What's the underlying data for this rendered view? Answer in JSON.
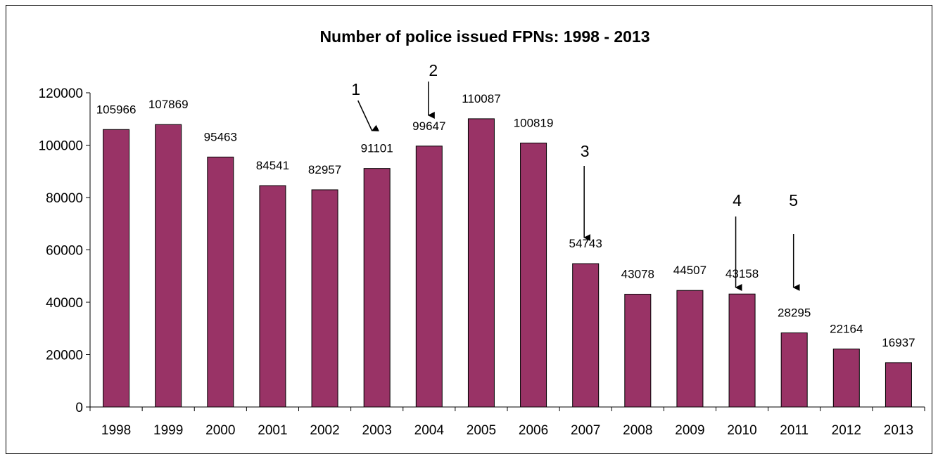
{
  "chart_data": {
    "type": "bar",
    "title": "Number of police issued FPNs: 1998 - 2013",
    "xlabel": "",
    "ylabel": "",
    "categories": [
      "1998",
      "1999",
      "2000",
      "2001",
      "2002",
      "2003",
      "2004",
      "2005",
      "2006",
      "2007",
      "2008",
      "2009",
      "2010",
      "2011",
      "2012",
      "2013"
    ],
    "values": [
      105966,
      107869,
      95463,
      84541,
      82957,
      91101,
      99647,
      110087,
      100819,
      54743,
      43078,
      44507,
      43158,
      28295,
      22164,
      16937
    ],
    "ylim": [
      0,
      120000
    ],
    "yticks": [
      "0",
      "20000",
      "40000",
      "60000",
      "80000",
      "100000",
      "120000"
    ],
    "bar_color": "#993366",
    "grid": false,
    "legend": "none",
    "annotations": [
      {
        "label": "1",
        "category": "2003"
      },
      {
        "label": "2",
        "category": "2004"
      },
      {
        "label": "3",
        "category": "2007"
      },
      {
        "label": "4",
        "category": "2010"
      },
      {
        "label": "5",
        "category": "2011"
      }
    ]
  }
}
